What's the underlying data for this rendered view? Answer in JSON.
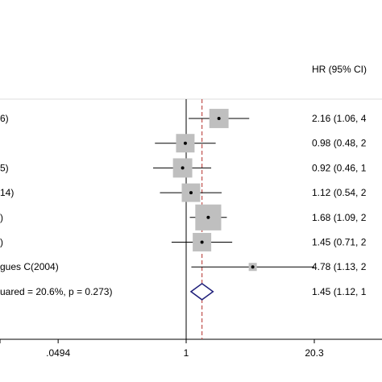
{
  "chart_data": {
    "type": "forest",
    "x_scale": "log",
    "null_line": 1,
    "overall_line": 1.45,
    "x_ticks": [
      {
        "value": 0.0494,
        "label": ".0494"
      },
      {
        "value": 1,
        "label": "1"
      },
      {
        "value": 20.3,
        "label": "20.3"
      }
    ],
    "hr_header": "HR (95% CI)",
    "studies": [
      {
        "label": "6)",
        "hr": 2.16,
        "lo": 1.06,
        "hi": 4.4,
        "weight": 0.11,
        "ci_text": "2.16 (1.06, 4"
      },
      {
        "label": "",
        "hr": 0.98,
        "lo": 0.48,
        "hi": 2.0,
        "weight": 0.1,
        "ci_text": "0.98 (0.48, 2"
      },
      {
        "label": "5)",
        "hr": 0.92,
        "lo": 0.46,
        "hi": 1.8,
        "weight": 0.11,
        "ci_text": "0.92 (0.46, 1"
      },
      {
        "label": "14)",
        "hr": 1.12,
        "lo": 0.54,
        "hi": 2.3,
        "weight": 0.1,
        "ci_text": "1.12 (0.54, 2"
      },
      {
        "label": ")",
        "hr": 1.68,
        "lo": 1.09,
        "hi": 2.6,
        "weight": 0.22,
        "ci_text": "1.68 (1.09, 2"
      },
      {
        "label": ")",
        "hr": 1.45,
        "lo": 0.71,
        "hi": 2.95,
        "weight": 0.1,
        "ci_text": "1.45 (0.71, 2"
      },
      {
        "label": "gues C(2004)",
        "hr": 4.78,
        "lo": 1.13,
        "hi": 20.3,
        "weight": 0.01,
        "ci_text": "4.78 (1.13, 2"
      }
    ],
    "overall": {
      "label": "uared = 20.6%, p = 0.273)",
      "hr": 1.45,
      "lo": 1.12,
      "hi": 1.88,
      "ci_text": "1.45 (1.12, 1"
    }
  }
}
